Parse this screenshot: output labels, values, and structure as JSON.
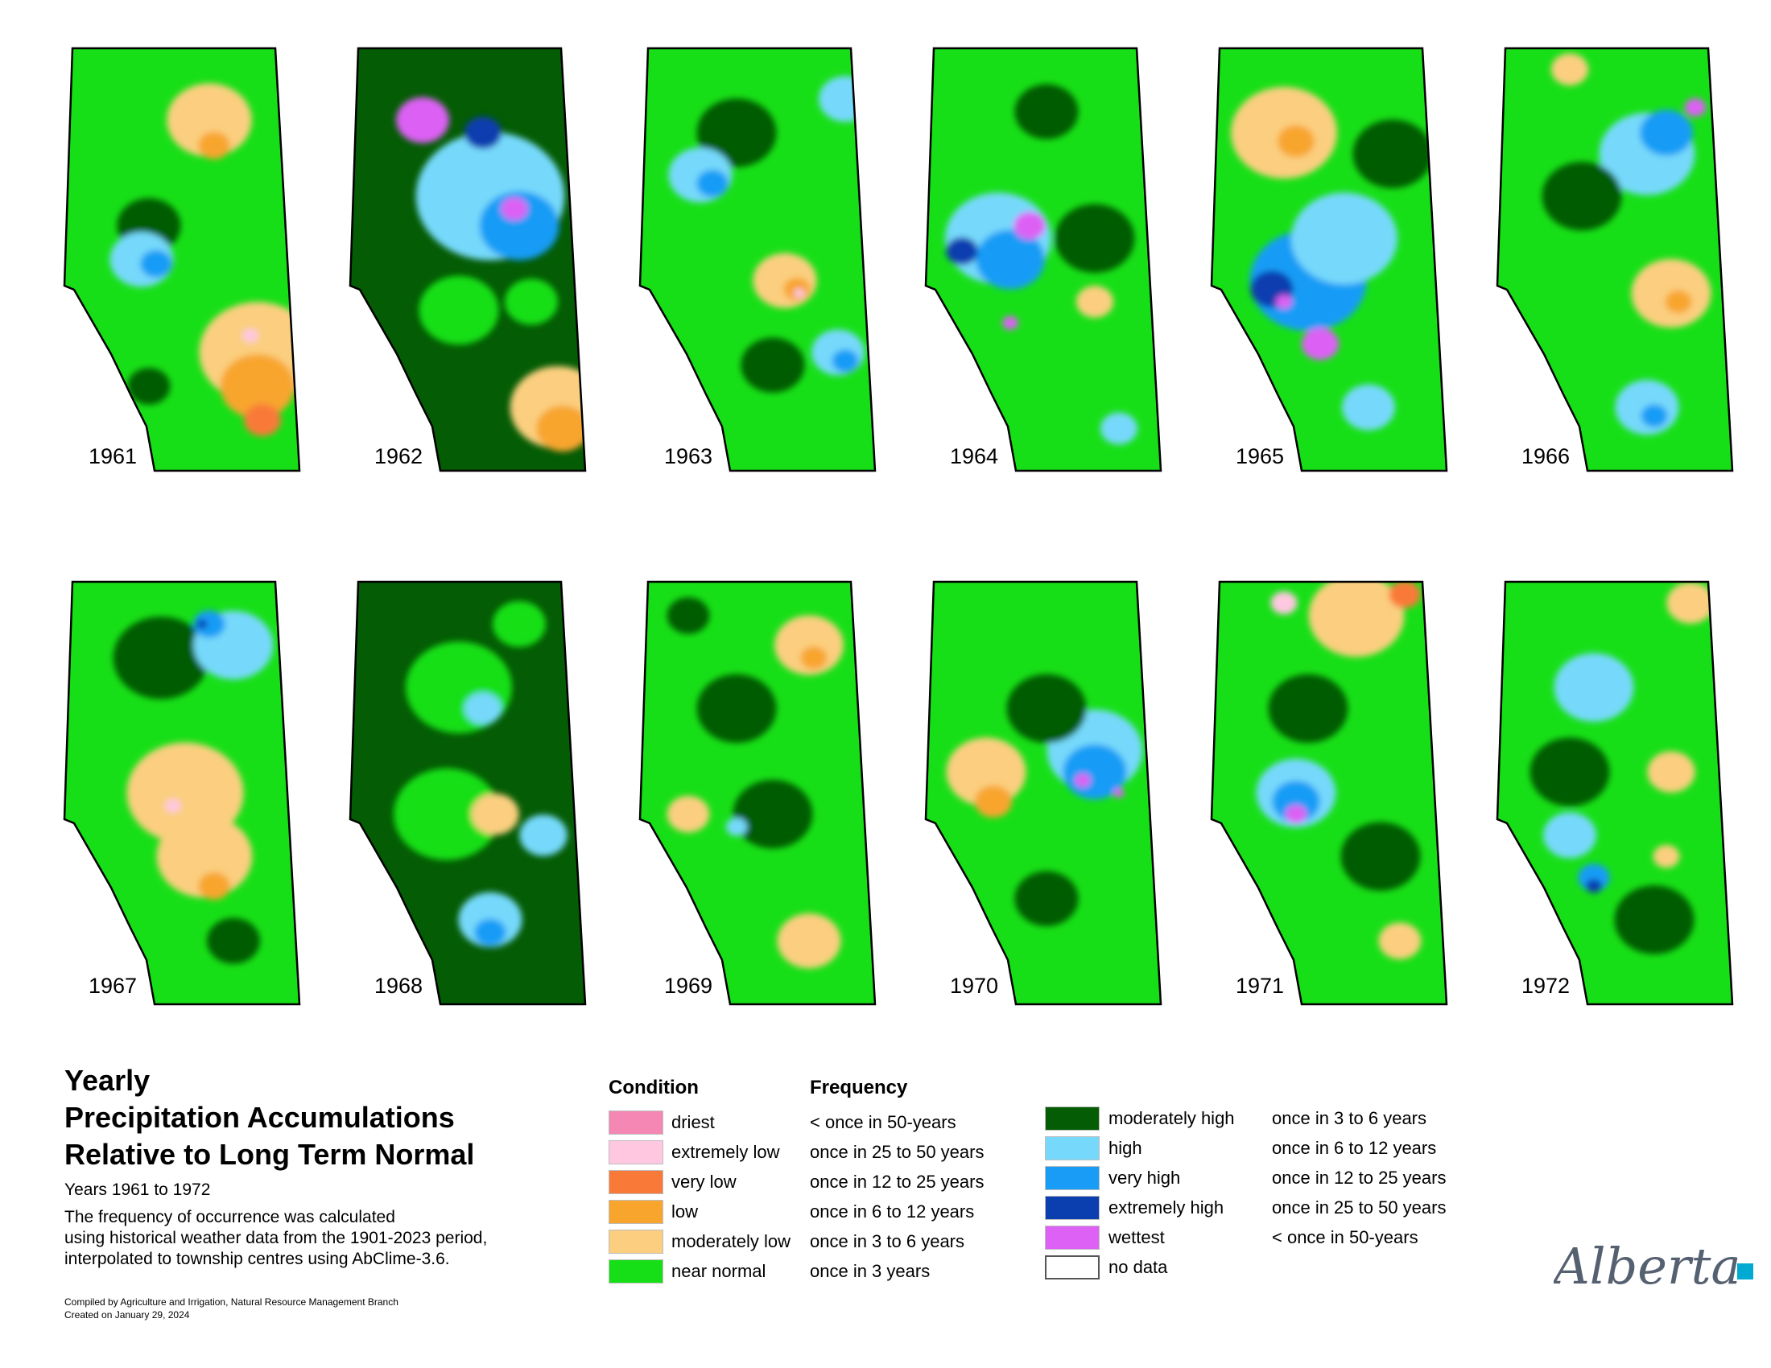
{
  "title": {
    "line1": "Yearly",
    "line2": "Precipitation Accumulations",
    "line3": "Relative to Long Term Normal"
  },
  "subtitle": "Years 1961 to 1972",
  "description": {
    "line1": "The frequency of occurrence was calculated",
    "line2": "using historical weather data from the 1901-2023 period,",
    "line3": "interpolated to township centres using AbClime-3.6."
  },
  "credits": {
    "compiled": "Compiled by Agriculture and Irrigation, Natural Resource Management Branch",
    "created": "Created on January 29, 2024"
  },
  "legend": {
    "condition_header": "Condition",
    "frequency_header": "Frequency",
    "dry_classes": [
      {
        "condition": "driest",
        "frequency": "< once in 50-years",
        "color": "#f487b4"
      },
      {
        "condition": "extremely low",
        "frequency": "once in 25 to 50 years",
        "color": "#ffc8e0"
      },
      {
        "condition": "very low",
        "frequency": "once in 12 to 25 years",
        "color": "#f97a38"
      },
      {
        "condition": "low",
        "frequency": "once in 6 to 12 years",
        "color": "#f8a52e"
      },
      {
        "condition": "moderately low",
        "frequency": "once in 3 to 6 years",
        "color": "#fbcf7f"
      },
      {
        "condition": "near normal",
        "frequency": "once in 3 years",
        "color": "#17df17"
      }
    ],
    "wet_classes": [
      {
        "condition": "moderately high",
        "frequency": "once in 3 to 6 years",
        "color": "#045c04"
      },
      {
        "condition": "high",
        "frequency": "once in 6 to 12 years",
        "color": "#76d9fb"
      },
      {
        "condition": "very high",
        "frequency": "once in 12 to 25 years",
        "color": "#199cf6"
      },
      {
        "condition": "extremely high",
        "frequency": "once in 25 to 50 years",
        "color": "#0b3eaf"
      },
      {
        "condition": "wettest",
        "frequency": "< once in 50-years",
        "color": "#dd61f4"
      },
      {
        "condition": "no data",
        "frequency": "",
        "color": "#ffffff"
      }
    ]
  },
  "maps": [
    {
      "year": "1961",
      "base": "#17df17",
      "patches": [
        [
          "#fbcf7f",
          0.6,
          0.17,
          0.16
        ],
        [
          "#f8a52e",
          0.62,
          0.23,
          0.06
        ],
        [
          "#045c04",
          0.35,
          0.42,
          0.12
        ],
        [
          "#76d9fb",
          0.32,
          0.5,
          0.12
        ],
        [
          "#199cf6",
          0.38,
          0.51,
          0.06
        ],
        [
          "#fbcf7f",
          0.8,
          0.72,
          0.22
        ],
        [
          "#f8a52e",
          0.8,
          0.8,
          0.14
        ],
        [
          "#f97a38",
          0.82,
          0.88,
          0.07
        ],
        [
          "#ffc8e0",
          0.77,
          0.68,
          0.03
        ],
        [
          "#045c04",
          0.35,
          0.8,
          0.08
        ]
      ]
    },
    {
      "year": "1962",
      "base": "#045c04",
      "patches": [
        [
          "#76d9fb",
          0.58,
          0.35,
          0.28
        ],
        [
          "#199cf6",
          0.7,
          0.42,
          0.15
        ],
        [
          "#dd61f4",
          0.3,
          0.17,
          0.1
        ],
        [
          "#0b3eaf",
          0.55,
          0.2,
          0.07
        ],
        [
          "#dd61f4",
          0.68,
          0.38,
          0.05
        ],
        [
          "#17df17",
          0.45,
          0.62,
          0.15
        ],
        [
          "#fbcf7f",
          0.86,
          0.85,
          0.18
        ],
        [
          "#f8a52e",
          0.88,
          0.9,
          0.1
        ],
        [
          "#17df17",
          0.75,
          0.6,
          0.1
        ]
      ]
    },
    {
      "year": "1963",
      "base": "#17df17",
      "patches": [
        [
          "#045c04",
          0.4,
          0.2,
          0.15
        ],
        [
          "#76d9fb",
          0.25,
          0.3,
          0.12
        ],
        [
          "#199cf6",
          0.3,
          0.32,
          0.06
        ],
        [
          "#fbcf7f",
          0.6,
          0.55,
          0.12
        ],
        [
          "#f8a52e",
          0.65,
          0.57,
          0.05
        ],
        [
          "#ffc8e0",
          0.66,
          0.58,
          0.02
        ],
        [
          "#76d9fb",
          0.82,
          0.72,
          0.1
        ],
        [
          "#199cf6",
          0.85,
          0.74,
          0.05
        ],
        [
          "#045c04",
          0.55,
          0.75,
          0.12
        ],
        [
          "#76d9fb",
          0.85,
          0.12,
          0.1
        ]
      ]
    },
    {
      "year": "1964",
      "base": "#17df17",
      "patches": [
        [
          "#76d9fb",
          0.3,
          0.45,
          0.2
        ],
        [
          "#199cf6",
          0.35,
          0.5,
          0.13
        ],
        [
          "#0b3eaf",
          0.15,
          0.48,
          0.06
        ],
        [
          "#dd61f4",
          0.43,
          0.42,
          0.06
        ],
        [
          "#dd61f4",
          0.35,
          0.65,
          0.03
        ],
        [
          "#045c04",
          0.7,
          0.45,
          0.15
        ],
        [
          "#fbcf7f",
          0.7,
          0.6,
          0.07
        ],
        [
          "#76d9fb",
          0.8,
          0.9,
          0.07
        ],
        [
          "#045c04",
          0.5,
          0.15,
          0.12
        ]
      ]
    },
    {
      "year": "1965",
      "base": "#17df17",
      "patches": [
        [
          "#fbcf7f",
          0.3,
          0.2,
          0.2
        ],
        [
          "#f8a52e",
          0.35,
          0.22,
          0.07
        ],
        [
          "#199cf6",
          0.4,
          0.55,
          0.22
        ],
        [
          "#76d9fb",
          0.55,
          0.45,
          0.2
        ],
        [
          "#0b3eaf",
          0.25,
          0.57,
          0.08
        ],
        [
          "#dd61f4",
          0.45,
          0.7,
          0.07
        ],
        [
          "#dd61f4",
          0.3,
          0.6,
          0.03
        ],
        [
          "#045c04",
          0.75,
          0.25,
          0.15
        ],
        [
          "#76d9fb",
          0.65,
          0.85,
          0.1
        ]
      ]
    },
    {
      "year": "1966",
      "base": "#17df17",
      "patches": [
        [
          "#76d9fb",
          0.62,
          0.25,
          0.18
        ],
        [
          "#199cf6",
          0.7,
          0.2,
          0.1
        ],
        [
          "#dd61f4",
          0.82,
          0.14,
          0.04
        ],
        [
          "#045c04",
          0.35,
          0.35,
          0.15
        ],
        [
          "#fbcf7f",
          0.72,
          0.58,
          0.15
        ],
        [
          "#f8a52e",
          0.75,
          0.6,
          0.05
        ],
        [
          "#76d9fb",
          0.62,
          0.85,
          0.12
        ],
        [
          "#199cf6",
          0.65,
          0.87,
          0.05
        ],
        [
          "#fbcf7f",
          0.3,
          0.05,
          0.07
        ]
      ]
    },
    {
      "year": "1967",
      "base": "#17df17",
      "patches": [
        [
          "#045c04",
          0.4,
          0.18,
          0.18
        ],
        [
          "#76d9fb",
          0.7,
          0.15,
          0.15
        ],
        [
          "#199cf6",
          0.6,
          0.1,
          0.06
        ],
        [
          "#0b3eaf",
          0.57,
          0.1,
          0.02
        ],
        [
          "#fbcf7f",
          0.5,
          0.5,
          0.22
        ],
        [
          "#fbcf7f",
          0.58,
          0.65,
          0.18
        ],
        [
          "#f8a52e",
          0.62,
          0.72,
          0.06
        ],
        [
          "#ffc8e0",
          0.45,
          0.53,
          0.03
        ],
        [
          "#045c04",
          0.7,
          0.85,
          0.1
        ]
      ]
    },
    {
      "year": "1968",
      "base": "#045c04",
      "patches": [
        [
          "#17df17",
          0.45,
          0.25,
          0.2
        ],
        [
          "#17df17",
          0.4,
          0.55,
          0.2
        ],
        [
          "#fbcf7f",
          0.6,
          0.55,
          0.09
        ],
        [
          "#76d9fb",
          0.58,
          0.8,
          0.12
        ],
        [
          "#199cf6",
          0.58,
          0.83,
          0.06
        ],
        [
          "#76d9fb",
          0.8,
          0.6,
          0.09
        ],
        [
          "#76d9fb",
          0.55,
          0.3,
          0.07
        ],
        [
          "#17df17",
          0.7,
          0.1,
          0.1
        ]
      ]
    },
    {
      "year": "1969",
      "base": "#17df17",
      "patches": [
        [
          "#fbcf7f",
          0.7,
          0.15,
          0.13
        ],
        [
          "#f8a52e",
          0.72,
          0.18,
          0.05
        ],
        [
          "#045c04",
          0.4,
          0.3,
          0.15
        ],
        [
          "#045c04",
          0.55,
          0.55,
          0.15
        ],
        [
          "#fbcf7f",
          0.7,
          0.85,
          0.12
        ],
        [
          "#fbcf7f",
          0.2,
          0.55,
          0.08
        ],
        [
          "#045c04",
          0.2,
          0.08,
          0.08
        ],
        [
          "#76d9fb",
          0.4,
          0.58,
          0.04
        ]
      ]
    },
    {
      "year": "1970",
      "base": "#17df17",
      "patches": [
        [
          "#76d9fb",
          0.7,
          0.4,
          0.18
        ],
        [
          "#199cf6",
          0.7,
          0.45,
          0.12
        ],
        [
          "#dd61f4",
          0.65,
          0.47,
          0.03
        ],
        [
          "#dd61f4",
          0.8,
          0.5,
          0.02
        ],
        [
          "#fbcf7f",
          0.25,
          0.45,
          0.15
        ],
        [
          "#f8a52e",
          0.28,
          0.52,
          0.07
        ],
        [
          "#045c04",
          0.5,
          0.3,
          0.15
        ],
        [
          "#045c04",
          0.5,
          0.75,
          0.12
        ]
      ]
    },
    {
      "year": "1971",
      "base": "#17df17",
      "patches": [
        [
          "#fbcf7f",
          0.6,
          0.08,
          0.18
        ],
        [
          "#ffc8e0",
          0.3,
          0.05,
          0.05
        ],
        [
          "#f97a38",
          0.8,
          0.03,
          0.06
        ],
        [
          "#045c04",
          0.4,
          0.3,
          0.15
        ],
        [
          "#76d9fb",
          0.35,
          0.5,
          0.15
        ],
        [
          "#199cf6",
          0.35,
          0.52,
          0.09
        ],
        [
          "#dd61f4",
          0.35,
          0.55,
          0.04
        ],
        [
          "#045c04",
          0.7,
          0.65,
          0.15
        ],
        [
          "#fbcf7f",
          0.78,
          0.85,
          0.08
        ]
      ]
    },
    {
      "year": "1972",
      "base": "#17df17",
      "patches": [
        [
          "#fbcf7f",
          0.8,
          0.05,
          0.09
        ],
        [
          "#76d9fb",
          0.4,
          0.25,
          0.15
        ],
        [
          "#045c04",
          0.3,
          0.45,
          0.15
        ],
        [
          "#76d9fb",
          0.3,
          0.6,
          0.1
        ],
        [
          "#199cf6",
          0.4,
          0.7,
          0.06
        ],
        [
          "#0b3eaf",
          0.4,
          0.72,
          0.03
        ],
        [
          "#fbcf7f",
          0.72,
          0.45,
          0.09
        ],
        [
          "#045c04",
          0.65,
          0.8,
          0.15
        ],
        [
          "#fbcf7f",
          0.7,
          0.65,
          0.05
        ]
      ]
    }
  ],
  "logo_text": "Alberta",
  "logo_accent_color": "#00aad2"
}
